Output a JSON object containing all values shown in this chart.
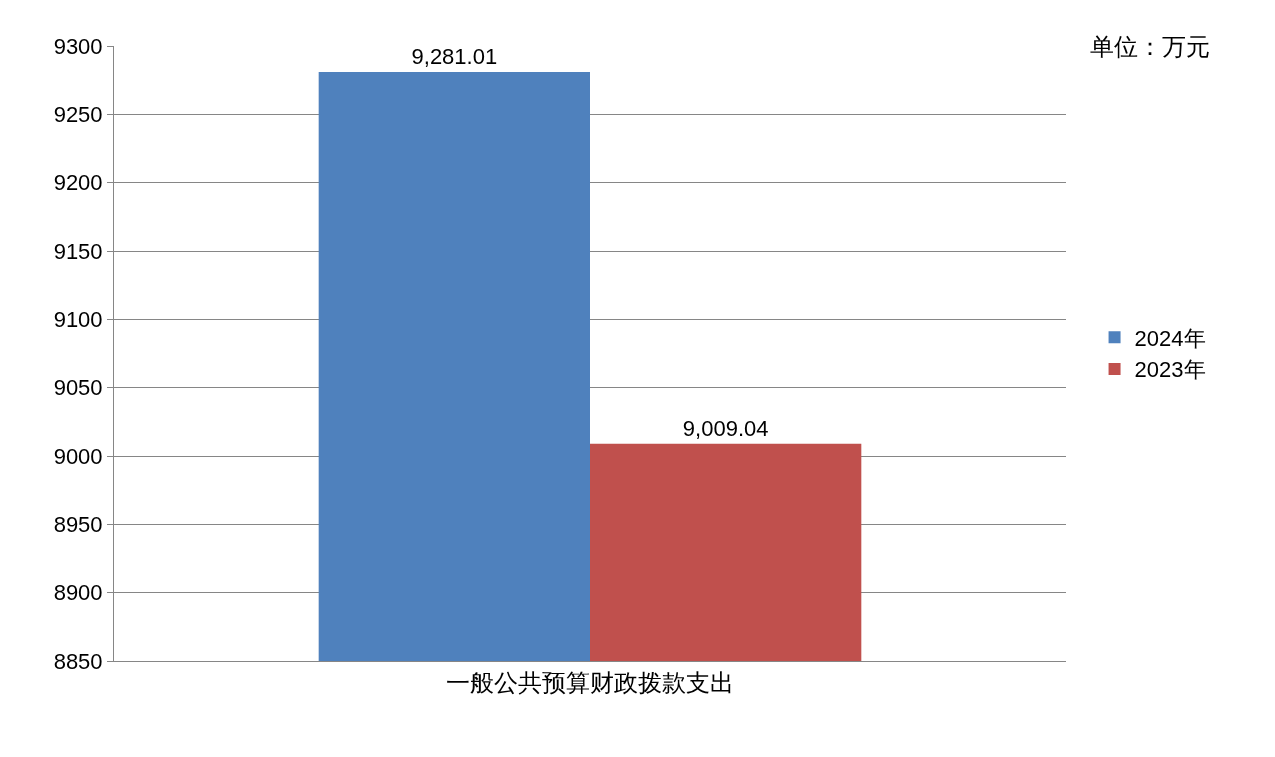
{
  "chart_data": {
    "type": "bar",
    "categories": [
      "一般公共预算财政拨款支出"
    ],
    "series": [
      {
        "name": "2024年",
        "color": "#4f81bd",
        "values": [
          9281.01
        ],
        "value_labels": [
          "9,281.01"
        ]
      },
      {
        "name": "2023年",
        "color": "#c0504d",
        "values": [
          9009.04
        ],
        "value_labels": [
          "9,009.04"
        ]
      }
    ],
    "ylim": [
      8850,
      9300
    ],
    "yticks": [
      8850,
      8900,
      8950,
      9000,
      9050,
      9100,
      9150,
      9200,
      9250,
      9300
    ],
    "grid": "y",
    "legend": "right",
    "annotations": [
      "单位：万元"
    ]
  }
}
